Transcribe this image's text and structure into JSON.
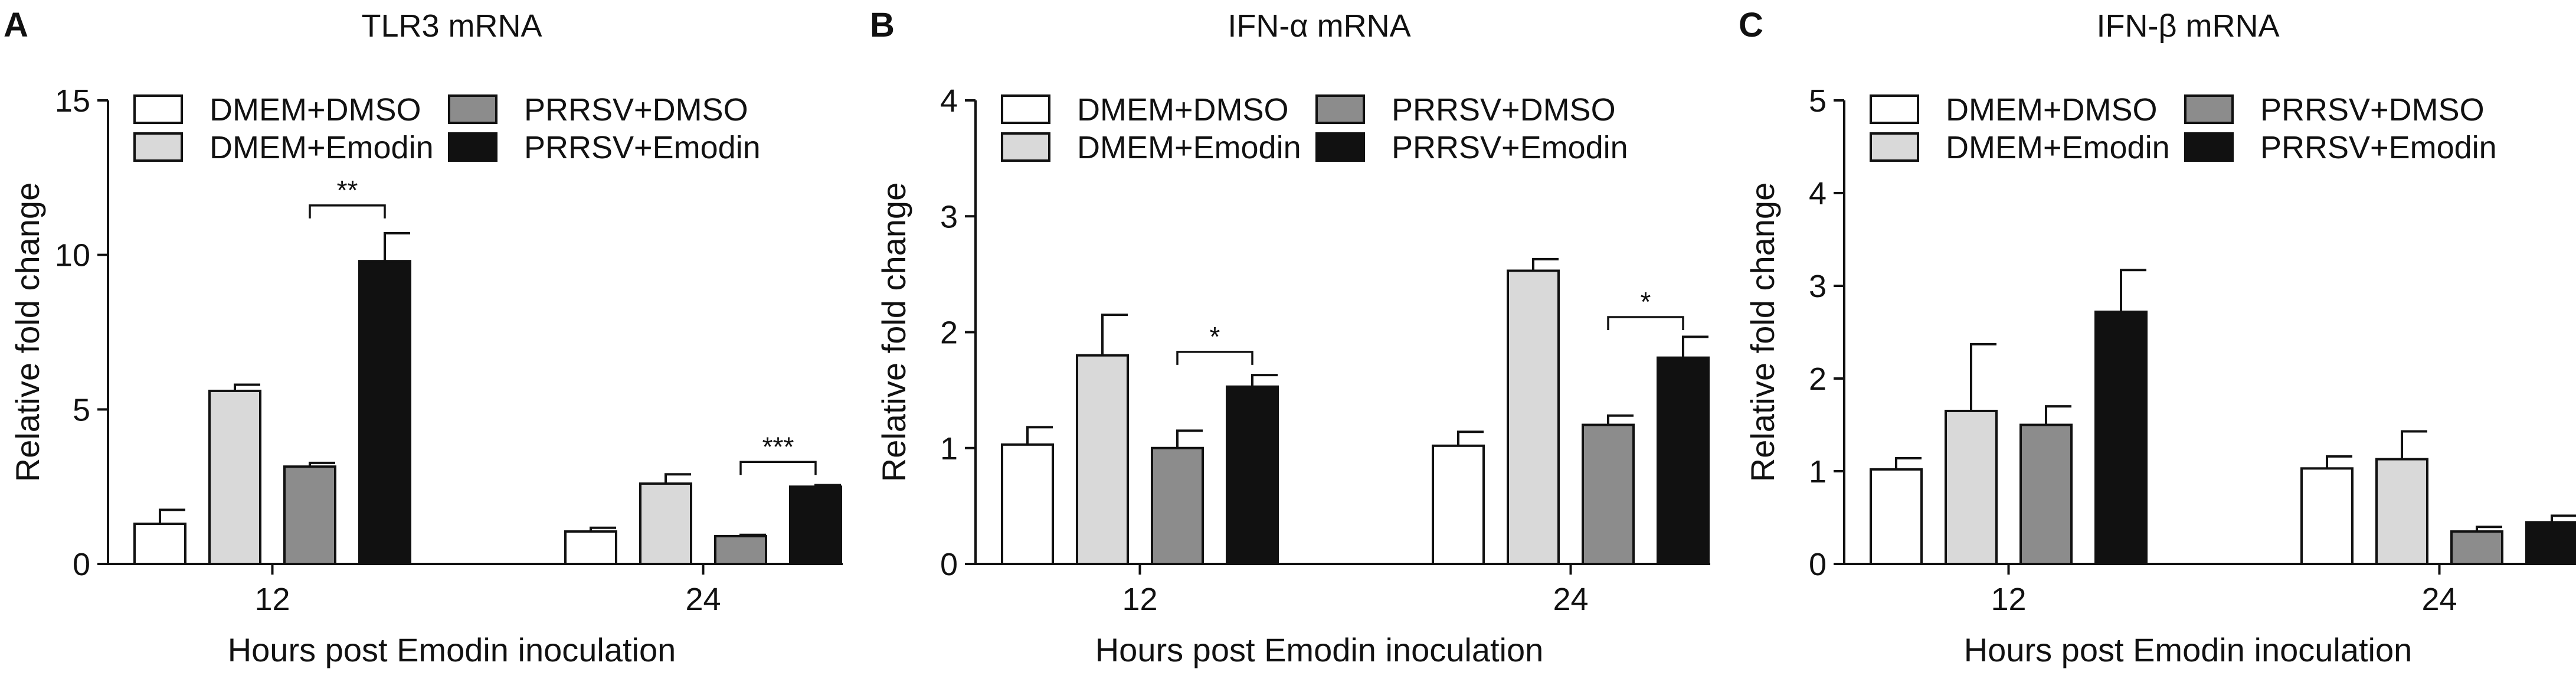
{
  "chart_data": [
    {
      "type": "bar",
      "panel": "A",
      "title": "TLR3 mRNA",
      "xlabel": "Hours post Emodin inoculation",
      "ylabel": "Relative fold change",
      "ylim": [
        0,
        15
      ],
      "yticks": [
        "0",
        "5",
        "10",
        "15"
      ],
      "categories": [
        "12",
        "24"
      ],
      "legend_position": "top",
      "series": [
        {
          "name": "DMEM+DMSO",
          "color": "#ffffff",
          "values": [
            1.3,
            1.05
          ],
          "errors": [
            0.45,
            0.12
          ]
        },
        {
          "name": "DMEM+Emodin",
          "color": "#d9d9d9",
          "values": [
            5.6,
            2.6
          ],
          "errors": [
            0.2,
            0.3
          ]
        },
        {
          "name": "PRRSV+DMSO",
          "color": "#8c8c8c",
          "values": [
            3.15,
            0.9
          ],
          "errors": [
            0.12,
            0.04
          ]
        },
        {
          "name": "PRRSV+Emodin",
          "color": "#111111",
          "values": [
            9.8,
            2.5
          ],
          "errors": [
            0.9,
            0.05
          ]
        }
      ],
      "significance": [
        {
          "label": "**",
          "group": 0,
          "from_series": 2,
          "to_series": 3,
          "y": 11.6
        },
        {
          "label": "***",
          "group": 1,
          "from_series": 2,
          "to_series": 3,
          "y": 3.3
        }
      ]
    },
    {
      "type": "bar",
      "panel": "B",
      "title": "IFN-α  mRNA",
      "xlabel": "Hours post Emodin inoculation",
      "ylabel": "Relative fold change",
      "ylim": [
        0,
        4
      ],
      "yticks": [
        "0",
        "1",
        "2",
        "3",
        "4"
      ],
      "categories": [
        "12",
        "24"
      ],
      "legend_position": "top",
      "series": [
        {
          "name": "DMEM+DMSO",
          "color": "#ffffff",
          "values": [
            1.03,
            1.02
          ],
          "errors": [
            0.15,
            0.12
          ]
        },
        {
          "name": "DMEM+Emodin",
          "color": "#d9d9d9",
          "values": [
            1.8,
            2.53
          ],
          "errors": [
            0.35,
            0.1
          ]
        },
        {
          "name": "PRRSV+DMSO",
          "color": "#8c8c8c",
          "values": [
            1.0,
            1.2
          ],
          "errors": [
            0.15,
            0.08
          ]
        },
        {
          "name": "PRRSV+Emodin",
          "color": "#111111",
          "values": [
            1.53,
            1.78
          ],
          "errors": [
            0.1,
            0.18
          ]
        }
      ],
      "significance": [
        {
          "label": "*",
          "group": 0,
          "from_series": 2,
          "to_series": 3,
          "y": 1.83
        },
        {
          "label": "*",
          "group": 1,
          "from_series": 2,
          "to_series": 3,
          "y": 2.13
        }
      ]
    },
    {
      "type": "bar",
      "panel": "C",
      "title": "IFN-β  mRNA",
      "xlabel": "Hours post Emodin inoculation",
      "ylabel": "Relative fold change",
      "ylim": [
        0,
        5
      ],
      "yticks": [
        "0",
        "1",
        "2",
        "3",
        "4",
        "5"
      ],
      "categories": [
        "12",
        "24"
      ],
      "legend_position": "top",
      "series": [
        {
          "name": "DMEM+DMSO",
          "color": "#ffffff",
          "values": [
            1.02,
            1.03
          ],
          "errors": [
            0.12,
            0.13
          ]
        },
        {
          "name": "DMEM+Emodin",
          "color": "#d9d9d9",
          "values": [
            1.65,
            1.13
          ],
          "errors": [
            0.72,
            0.3
          ]
        },
        {
          "name": "PRRSV+DMSO",
          "color": "#8c8c8c",
          "values": [
            1.5,
            0.35
          ],
          "errors": [
            0.2,
            0.05
          ]
        },
        {
          "name": "PRRSV+Emodin",
          "color": "#111111",
          "values": [
            2.72,
            0.45
          ],
          "errors": [
            0.45,
            0.07
          ]
        }
      ],
      "significance": []
    }
  ]
}
